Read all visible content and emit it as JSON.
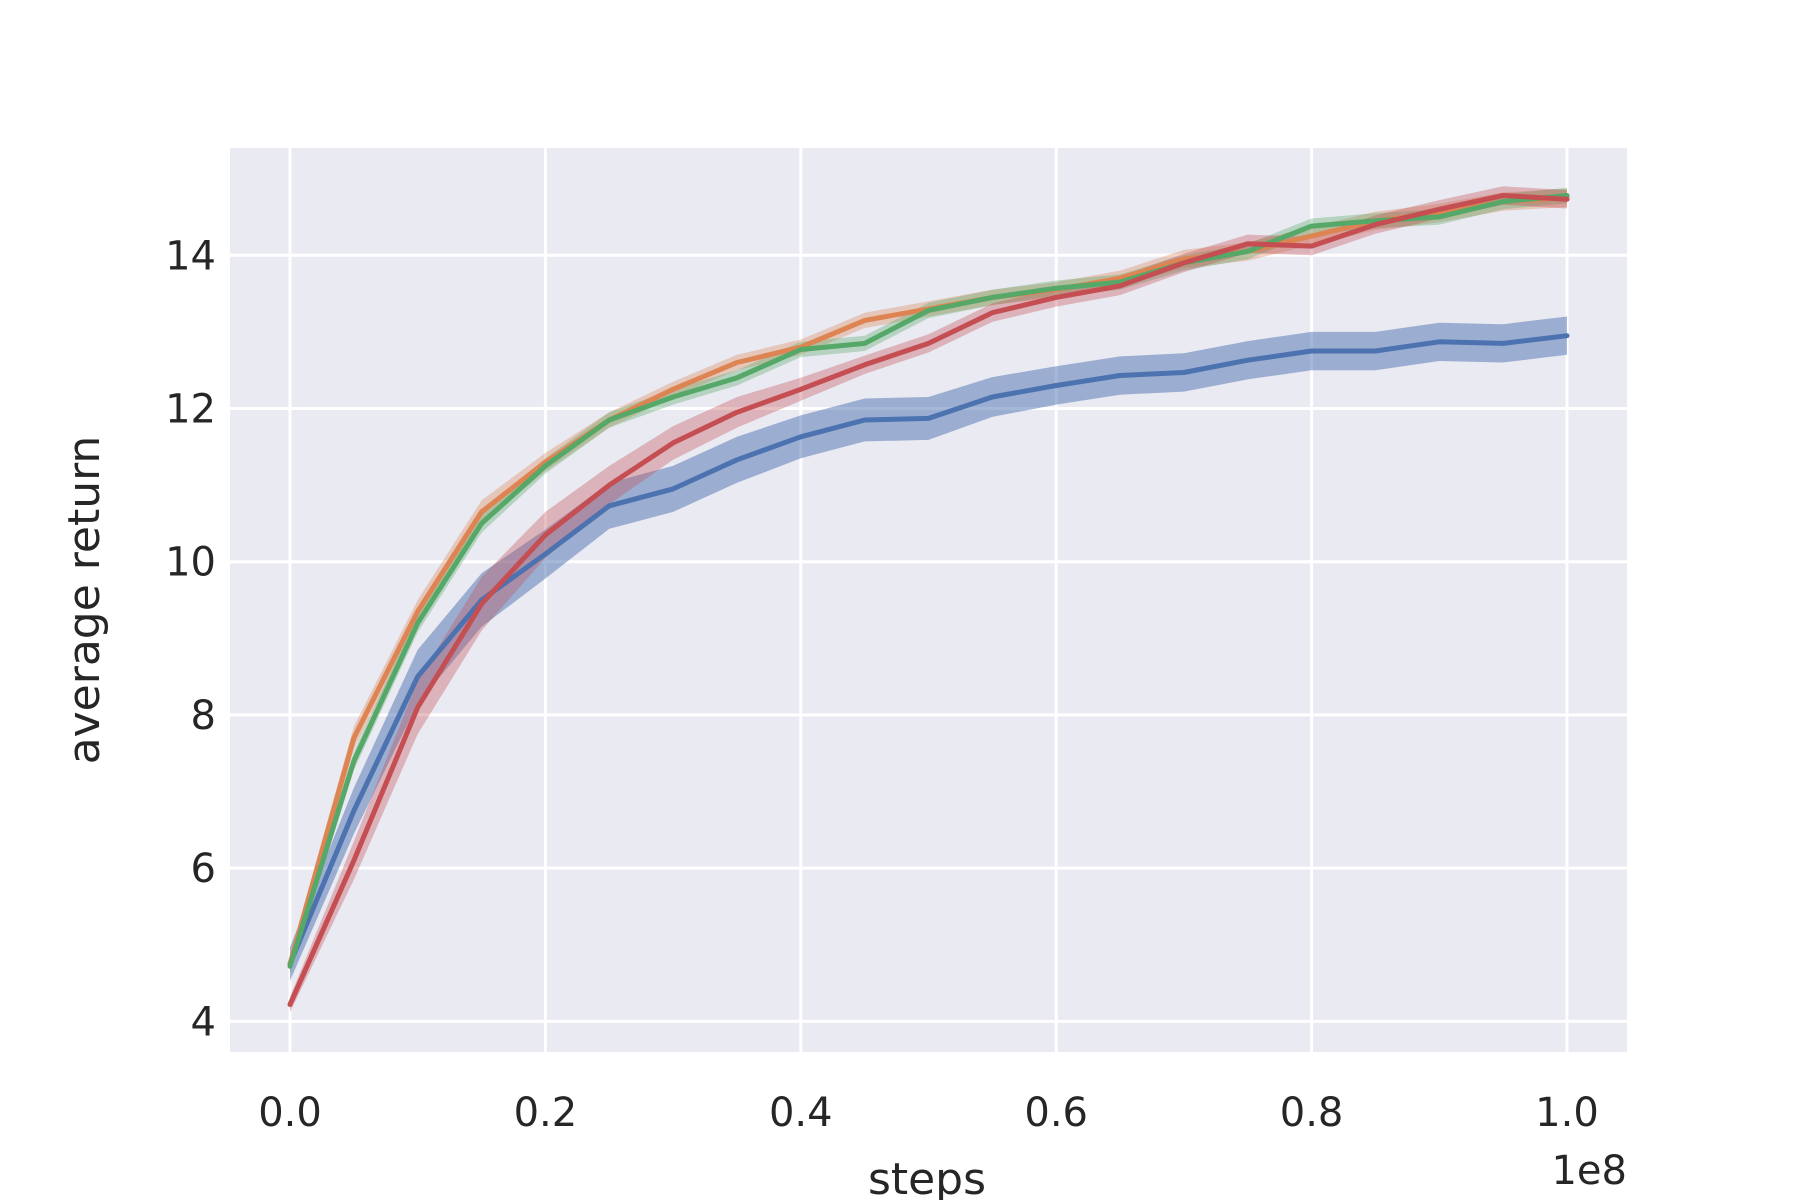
{
  "chart_data": {
    "type": "line",
    "title": "",
    "xlabel": "steps",
    "ylabel": "average return",
    "x_offset_label": "1e8",
    "xlim": [
      -0.047,
      1.047
    ],
    "ylim": [
      3.6,
      15.4
    ],
    "x_ticks": [
      0.0,
      0.2,
      0.4,
      0.6,
      0.8,
      1.0
    ],
    "x_tick_labels": [
      "0.0",
      "0.2",
      "0.4",
      "0.6",
      "0.8",
      "1.0"
    ],
    "y_ticks": [
      4,
      6,
      8,
      10,
      12,
      14
    ],
    "y_tick_labels": [
      "4",
      "6",
      "8",
      "10",
      "12",
      "14"
    ],
    "grid": true,
    "background": "#EAEAF2",
    "x": [
      0.0,
      0.05,
      0.1,
      0.15,
      0.2,
      0.25,
      0.3,
      0.35,
      0.4,
      0.45,
      0.5,
      0.55,
      0.6,
      0.65,
      0.7,
      0.75,
      0.8,
      0.85,
      0.9,
      0.95,
      1.0
    ],
    "series": [
      {
        "color": "#4C72B0",
        "values": [
          4.75,
          6.75,
          8.5,
          9.5,
          10.1,
          10.73,
          10.95,
          11.33,
          11.63,
          11.85,
          11.87,
          12.15,
          12.3,
          12.43,
          12.47,
          12.63,
          12.75,
          12.75,
          12.87,
          12.85,
          12.95
        ],
        "band": [
          0.22,
          0.3,
          0.35,
          0.35,
          0.32,
          0.3,
          0.3,
          0.3,
          0.28,
          0.28,
          0.28,
          0.26,
          0.25,
          0.25,
          0.25,
          0.25,
          0.25,
          0.25,
          0.25,
          0.25,
          0.25
        ]
      },
      {
        "color": "#DD8452",
        "values": [
          4.75,
          7.7,
          9.35,
          10.65,
          11.3,
          11.85,
          12.25,
          12.6,
          12.8,
          13.15,
          13.3,
          13.45,
          13.55,
          13.7,
          13.95,
          14.05,
          14.25,
          14.45,
          14.55,
          14.7,
          14.75
        ],
        "band": [
          0.12,
          0.15,
          0.15,
          0.15,
          0.12,
          0.1,
          0.1,
          0.1,
          0.1,
          0.1,
          0.1,
          0.1,
          0.1,
          0.1,
          0.12,
          0.12,
          0.12,
          0.12,
          0.12,
          0.12,
          0.12
        ]
      },
      {
        "color": "#55A868",
        "values": [
          4.72,
          7.4,
          9.2,
          10.5,
          11.25,
          11.85,
          12.15,
          12.4,
          12.77,
          12.85,
          13.28,
          13.45,
          13.57,
          13.65,
          13.9,
          14.05,
          14.38,
          14.45,
          14.5,
          14.7,
          14.78
        ],
        "band": [
          0.1,
          0.12,
          0.12,
          0.12,
          0.1,
          0.1,
          0.1,
          0.1,
          0.1,
          0.1,
          0.1,
          0.1,
          0.1,
          0.1,
          0.1,
          0.1,
          0.1,
          0.1,
          0.1,
          0.1,
          0.1
        ]
      },
      {
        "color": "#C44E52",
        "values": [
          4.22,
          6.1,
          8.1,
          9.45,
          10.35,
          11.0,
          11.55,
          11.95,
          12.25,
          12.57,
          12.85,
          13.25,
          13.45,
          13.6,
          13.9,
          14.15,
          14.12,
          14.4,
          14.6,
          14.78,
          14.73
        ],
        "band": [
          0.1,
          0.25,
          0.35,
          0.35,
          0.3,
          0.25,
          0.22,
          0.2,
          0.15,
          0.12,
          0.12,
          0.12,
          0.12,
          0.12,
          0.12,
          0.12,
          0.12,
          0.12,
          0.12,
          0.12,
          0.12
        ]
      }
    ]
  }
}
